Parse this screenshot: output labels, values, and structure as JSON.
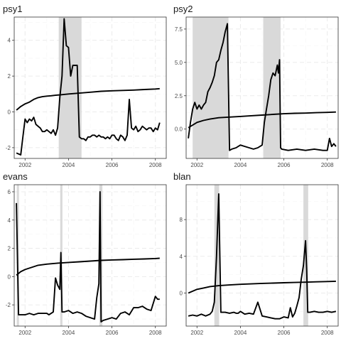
{
  "chart_data": [
    {
      "type": "line",
      "title": "psy1",
      "xlim": [
        2001.5,
        2008.5
      ],
      "ylim": [
        -2.6,
        5.3
      ],
      "x_ticks": [
        2002,
        2004,
        2006,
        2008
      ],
      "y_ticks": [
        -2,
        0,
        2,
        4
      ],
      "x_tick_labels": [
        "2002",
        "2004",
        "2006",
        "2008"
      ],
      "y_tick_labels": [
        "-2",
        "0",
        "2",
        "4"
      ],
      "grid": true,
      "shaded_periods": [
        [
          2003.55,
          2004.6
        ]
      ],
      "colors": {
        "statistic": "#000000",
        "critical": "#000000",
        "shade": "#d9d9d9"
      },
      "series": [
        {
          "x": [
            2001.6,
            2001.8,
            2001.9,
            2002.0,
            2002.1,
            2002.2,
            2002.3,
            2002.4,
            2002.5,
            2002.6,
            2002.7,
            2002.8,
            2002.9,
            2003.0,
            2003.1,
            2003.2,
            2003.3,
            2003.4,
            2003.5,
            2003.6,
            2003.7,
            2003.8,
            2003.9,
            2004.0,
            2004.1,
            2004.2,
            2004.3,
            2004.4,
            2004.5,
            2004.6,
            2004.7,
            2004.8,
            2004.9,
            2005.0,
            2005.1,
            2005.2,
            2005.3,
            2005.4,
            2005.5,
            2005.6,
            2005.7,
            2005.8,
            2005.9,
            2006.0,
            2006.1,
            2006.2,
            2006.3,
            2006.4,
            2006.5,
            2006.6,
            2006.7,
            2006.8,
            2006.9,
            2007.0,
            2007.1,
            2007.2,
            2007.3,
            2007.4,
            2007.5,
            2007.6,
            2007.7,
            2007.8,
            2007.9,
            2008.0,
            2008.1,
            2008.2
          ],
          "values": [
            -2.3,
            -2.4,
            -1.4,
            -0.4,
            -0.6,
            -0.4,
            -0.5,
            -0.3,
            -0.7,
            -0.8,
            -0.9,
            -1.1,
            -1.1,
            -1.0,
            -1.1,
            -1.2,
            -1.0,
            -1.3,
            -0.9,
            0.8,
            2.0,
            5.2,
            3.7,
            3.6,
            2.0,
            2.6,
            2.6,
            2.6,
            -1.4,
            -1.5,
            -1.5,
            -1.6,
            -1.4,
            -1.4,
            -1.3,
            -1.3,
            -1.4,
            -1.3,
            -1.4,
            -1.4,
            -1.5,
            -1.4,
            -1.5,
            -1.3,
            -1.3,
            -1.5,
            -1.6,
            -1.3,
            -1.4,
            -1.6,
            -1.3,
            0.7,
            -0.9,
            -1.0,
            -0.8,
            -1.1,
            -1.0,
            -0.8,
            -0.9,
            -1.0,
            -0.9,
            -0.9,
            -1.1,
            -0.9,
            -1.0,
            -0.6
          ]
        },
        {
          "x": [
            2001.6,
            2001.8,
            2002.0,
            2002.2,
            2002.4,
            2002.6,
            2002.8,
            2003.0,
            2003.2,
            2003.4,
            2003.6,
            2004.0,
            2004.5,
            2005.0,
            2005.5,
            2006.0,
            2006.5,
            2007.0,
            2007.5,
            2008.0,
            2008.2
          ],
          "values": [
            0.1,
            0.3,
            0.45,
            0.55,
            0.7,
            0.8,
            0.85,
            0.88,
            0.9,
            0.93,
            0.95,
            1.0,
            1.05,
            1.1,
            1.15,
            1.18,
            1.2,
            1.22,
            1.25,
            1.28,
            1.3
          ]
        }
      ]
    },
    {
      "type": "line",
      "title": "psy2",
      "xlim": [
        2001.5,
        2008.5
      ],
      "ylim": [
        -2.2,
        8.4
      ],
      "x_ticks": [
        2002,
        2004,
        2006,
        2008
      ],
      "y_ticks": [
        0.0,
        2.5,
        5.0,
        7.5
      ],
      "x_tick_labels": [
        "2002",
        "2004",
        "2006",
        "2008"
      ],
      "y_tick_labels": [
        "0.0",
        "2.5",
        "5.0",
        "7.5"
      ],
      "grid": true,
      "shaded_periods": [
        [
          2001.8,
          2003.45
        ],
        [
          2005.05,
          2005.85
        ]
      ],
      "colors": {
        "statistic": "#000000",
        "critical": "#000000",
        "shade": "#d9d9d9"
      },
      "series": [
        {
          "x": [
            2001.6,
            2001.7,
            2001.8,
            2001.9,
            2002.0,
            2002.1,
            2002.2,
            2002.3,
            2002.4,
            2002.5,
            2002.6,
            2002.7,
            2002.8,
            2002.9,
            2003.0,
            2003.1,
            2003.2,
            2003.3,
            2003.4,
            2003.5,
            2003.6,
            2003.8,
            2004.0,
            2004.2,
            2004.4,
            2004.6,
            2004.8,
            2005.0,
            2005.1,
            2005.2,
            2005.3,
            2005.4,
            2005.5,
            2005.6,
            2005.7,
            2005.75,
            2005.8,
            2005.85,
            2005.9,
            2006.2,
            2006.6,
            2007.0,
            2007.4,
            2007.8,
            2008.0,
            2008.1,
            2008.2,
            2008.3,
            2008.4
          ],
          "values": [
            -0.7,
            0.5,
            1.5,
            2.0,
            1.5,
            1.8,
            1.5,
            1.8,
            2.0,
            2.8,
            3.1,
            3.5,
            4.0,
            5.0,
            5.2,
            5.9,
            6.5,
            7.3,
            7.9,
            -1.6,
            -1.5,
            -1.4,
            -1.2,
            -1.3,
            -1.4,
            -1.5,
            -1.4,
            -1.2,
            0.5,
            1.5,
            2.5,
            3.7,
            4.2,
            4.0,
            4.8,
            4.2,
            5.2,
            -1.4,
            -1.5,
            -1.6,
            -1.5,
            -1.6,
            -1.5,
            -1.6,
            -1.6,
            -0.7,
            -1.3,
            -1.1,
            -1.3
          ]
        },
        {
          "x": [
            2001.6,
            2001.8,
            2002.0,
            2002.3,
            2002.6,
            2003.0,
            2003.5,
            2004.0,
            2004.5,
            2005.0,
            2005.5,
            2006.0,
            2006.5,
            2007.0,
            2007.5,
            2008.0,
            2008.4
          ],
          "values": [
            0.1,
            0.3,
            0.5,
            0.65,
            0.75,
            0.85,
            0.9,
            0.95,
            1.0,
            1.05,
            1.1,
            1.15,
            1.18,
            1.2,
            1.23,
            1.25,
            1.28
          ]
        }
      ]
    },
    {
      "type": "line",
      "title": "evans",
      "xlim": [
        2001.5,
        2008.5
      ],
      "ylim": [
        -3.5,
        6.5
      ],
      "x_ticks": [
        2002,
        2004,
        2006,
        2008
      ],
      "y_ticks": [
        -2,
        0,
        2,
        4,
        6
      ],
      "x_tick_labels": [
        "2002",
        "2004",
        "2006",
        "2008"
      ],
      "y_tick_labels": [
        "-2",
        "0",
        "2",
        "4",
        "6"
      ],
      "grid": true,
      "shaded_periods": [
        [
          2001.62,
          2001.72
        ],
        [
          2003.62,
          2003.72
        ],
        [
          2005.42,
          2005.56
        ]
      ],
      "colors": {
        "statistic": "#000000",
        "critical": "#000000",
        "shade": "#d9d9d9"
      },
      "series": [
        {
          "x": [
            2001.6,
            2001.7,
            2001.8,
            2002.0,
            2002.2,
            2002.4,
            2002.6,
            2002.8,
            2003.0,
            2003.1,
            2003.2,
            2003.3,
            2003.4,
            2003.5,
            2003.6,
            2003.65,
            2003.7,
            2003.8,
            2004.0,
            2004.2,
            2004.4,
            2004.6,
            2004.8,
            2005.0,
            2005.2,
            2005.3,
            2005.4,
            2005.45,
            2005.5,
            2005.6,
            2005.8,
            2006.0,
            2006.2,
            2006.4,
            2006.6,
            2006.8,
            2007.0,
            2007.2,
            2007.4,
            2007.6,
            2007.8,
            2008.0,
            2008.1,
            2008.2
          ],
          "values": [
            5.2,
            -2.7,
            -2.7,
            -2.7,
            -2.6,
            -2.7,
            -2.6,
            -2.6,
            -2.6,
            -2.7,
            -2.6,
            -2.5,
            -0.1,
            -0.6,
            -0.9,
            1.7,
            -2.5,
            -2.5,
            -2.4,
            -2.6,
            -2.5,
            -2.6,
            -2.8,
            -2.9,
            -3.0,
            -1.5,
            -0.5,
            6.0,
            -3.2,
            -3.1,
            -3.0,
            -2.9,
            -3.0,
            -2.6,
            -2.5,
            -2.7,
            -2.2,
            -2.2,
            -2.1,
            -2.3,
            -2.4,
            -1.4,
            -1.6,
            -1.6
          ]
        },
        {
          "x": [
            2001.6,
            2001.8,
            2002.0,
            2002.3,
            2002.6,
            2003.0,
            2003.5,
            2004.0,
            2004.5,
            2005.0,
            2005.5,
            2006.0,
            2006.5,
            2007.0,
            2007.5,
            2008.0,
            2008.2
          ],
          "values": [
            0.1,
            0.35,
            0.5,
            0.65,
            0.8,
            0.88,
            0.95,
            1.0,
            1.05,
            1.1,
            1.15,
            1.18,
            1.2,
            1.23,
            1.25,
            1.28,
            1.3
          ]
        }
      ]
    },
    {
      "type": "line",
      "title": "blan",
      "xlim": [
        2001.5,
        2008.5
      ],
      "ylim": [
        -3.6,
        11.8
      ],
      "x_ticks": [
        2002,
        2004,
        2006,
        2008
      ],
      "y_ticks": [
        0,
        4,
        8
      ],
      "x_tick_labels": [
        "2002",
        "2004",
        "2006",
        "2008"
      ],
      "y_tick_labels": [
        "0",
        "4",
        "8"
      ],
      "grid": true,
      "shaded_periods": [
        [
          2002.8,
          2003.02
        ],
        [
          2006.9,
          2007.12
        ]
      ],
      "colors": {
        "statistic": "#000000",
        "critical": "#000000",
        "shade": "#d9d9d9"
      },
      "series": [
        {
          "x": [
            2001.6,
            2001.8,
            2002.0,
            2002.2,
            2002.4,
            2002.6,
            2002.7,
            2002.8,
            2002.9,
            2003.0,
            2003.1,
            2003.3,
            2003.5,
            2003.7,
            2003.8,
            2003.9,
            2004.0,
            2004.2,
            2004.4,
            2004.6,
            2004.8,
            2005.0,
            2005.2,
            2005.4,
            2005.6,
            2005.8,
            2006.0,
            2006.2,
            2006.3,
            2006.4,
            2006.5,
            2006.6,
            2006.7,
            2006.8,
            2006.9,
            2007.0,
            2007.05,
            2007.1,
            2007.2,
            2007.4,
            2007.6,
            2007.8,
            2008.0,
            2008.2,
            2008.4
          ],
          "values": [
            -2.5,
            -2.4,
            -2.5,
            -2.3,
            -2.5,
            -2.3,
            -2.0,
            -1.0,
            4.0,
            10.8,
            -2.1,
            -2.1,
            -2.2,
            -2.1,
            -2.2,
            -2.2,
            -2.0,
            -2.3,
            -2.2,
            -2.3,
            -1.0,
            -2.5,
            -2.6,
            -2.7,
            -2.8,
            -2.8,
            -2.6,
            -2.7,
            -1.6,
            -2.6,
            -2.2,
            -1.4,
            -0.5,
            1.5,
            3.0,
            5.7,
            2.5,
            -2.1,
            -2.1,
            -2.0,
            -2.1,
            -2.1,
            -2.0,
            -2.1,
            -2.0
          ]
        },
        {
          "x": [
            2001.6,
            2001.8,
            2002.0,
            2002.3,
            2002.6,
            2003.0,
            2003.5,
            2004.0,
            2004.5,
            2005.0,
            2005.5,
            2006.0,
            2006.5,
            2007.0,
            2007.5,
            2008.0,
            2008.4
          ],
          "values": [
            0.0,
            0.2,
            0.4,
            0.55,
            0.7,
            0.8,
            0.88,
            0.95,
            1.0,
            1.05,
            1.08,
            1.12,
            1.15,
            1.18,
            1.22,
            1.25,
            1.28
          ]
        }
      ]
    }
  ]
}
